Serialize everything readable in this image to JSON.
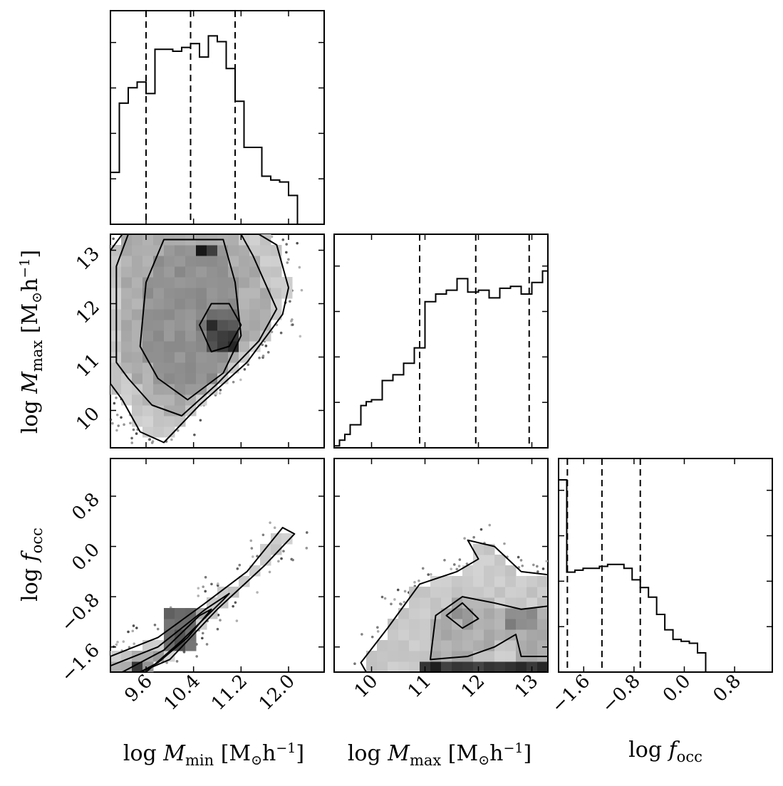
{
  "chart_data": {
    "type": "corner",
    "parameters": [
      {
        "key": "mmin",
        "label": "log M_min [M⊙h⁻¹]",
        "range": [
          9.0,
          12.6
        ]
      },
      {
        "key": "mmax",
        "label": "log M_max [M⊙h⁻¹]",
        "range": [
          9.3,
          13.3
        ]
      },
      {
        "key": "focc",
        "label": "log f_occ",
        "range": [
          -2.0,
          1.4
        ]
      }
    ],
    "axis_labels": {
      "mmin": {
        "prefix": "log ",
        "var": "M",
        "sub": "min",
        "unit_open": " [M",
        "sun": "⊙",
        "h": "h",
        "exp": "−1",
        "unit_close": "]"
      },
      "mmax": {
        "prefix": "log ",
        "var": "M",
        "sub": "max",
        "unit_open": " [M",
        "sun": "⊙",
        "h": "h",
        "exp": "−1",
        "unit_close": "]"
      },
      "focc": {
        "prefix": "log ",
        "var": "f",
        "sub": "occ"
      }
    },
    "ticks": {
      "mmin": {
        "values": [
          9.6,
          10.4,
          11.2,
          12.0
        ],
        "labels": [
          "9.6",
          "10.4",
          "11.2",
          "12.0"
        ]
      },
      "mmax": {
        "values": [
          10,
          11,
          12,
          13
        ],
        "labels": [
          "10",
          "11",
          "12",
          "13"
        ]
      },
      "focc": {
        "values": [
          -1.6,
          -0.8,
          0.0,
          0.8
        ],
        "labels": [
          "−1.6",
          "−0.8",
          "0.0",
          "0.8"
        ]
      }
    },
    "histograms": [
      {
        "param": "mmin",
        "bin_edges": [
          9.0,
          9.15,
          9.3,
          9.45,
          9.6,
          9.75,
          9.9,
          10.05,
          10.2,
          10.35,
          10.5,
          10.65,
          10.8,
          10.95,
          11.1,
          11.25,
          11.4,
          11.55,
          11.7,
          11.85,
          12.0,
          12.15,
          12.3,
          12.45,
          12.6
        ],
        "counts": [
          0.27,
          0.63,
          0.71,
          0.74,
          0.68,
          0.91,
          0.91,
          0.9,
          0.92,
          0.94,
          0.87,
          0.98,
          0.95,
          0.81,
          0.64,
          0.4,
          0.4,
          0.25,
          0.23,
          0.22,
          0.15,
          0.0,
          0.0,
          0.0
        ],
        "quantiles": [
          9.6,
          10.35,
          11.1
        ]
      },
      {
        "param": "mmax",
        "bin_edges": [
          9.3,
          9.4,
          9.5,
          9.6,
          9.7,
          9.8,
          9.9,
          10.0,
          10.2,
          10.4,
          10.6,
          10.8,
          11.0,
          11.2,
          11.4,
          11.6,
          11.8,
          12.0,
          12.2,
          12.4,
          12.6,
          12.8,
          13.0,
          13.2,
          13.3
        ],
        "counts": [
          0.01,
          0.04,
          0.07,
          0.12,
          0.12,
          0.22,
          0.24,
          0.25,
          0.35,
          0.38,
          0.44,
          0.52,
          0.76,
          0.8,
          0.82,
          0.88,
          0.81,
          0.82,
          0.78,
          0.83,
          0.84,
          0.8,
          0.86,
          0.92
        ],
        "quantiles": [
          10.9,
          11.95,
          12.95
        ]
      },
      {
        "param": "focc",
        "bin_edges": [
          -2.0,
          -1.87,
          -1.74,
          -1.61,
          -1.48,
          -1.35,
          -1.22,
          -1.09,
          -0.96,
          -0.83,
          -0.7,
          -0.57,
          -0.44,
          -0.31,
          -0.18,
          -0.05,
          0.08,
          0.21,
          0.34,
          0.47,
          0.6,
          0.73,
          0.86,
          0.99,
          1.12,
          1.4
        ],
        "counts": [
          1.0,
          0.52,
          0.53,
          0.54,
          0.54,
          0.55,
          0.56,
          0.56,
          0.54,
          0.48,
          0.44,
          0.39,
          0.3,
          0.22,
          0.17,
          0.16,
          0.15,
          0.1,
          0.0,
          0.0,
          0.0,
          0.0,
          0.0,
          0.0,
          0.0
        ],
        "quantiles": [
          -1.86,
          -1.31,
          -0.7
        ]
      }
    ],
    "contour_panels": [
      {
        "x": "mmin",
        "y": "mmax",
        "peak_regions": [
          {
            "x": [
              10.5,
              10.8
            ],
            "y": [
              13.0,
              13.2
            ],
            "density": 0.95
          },
          {
            "x": [
              10.6,
              11.1
            ],
            "y": [
              11.2,
              11.7
            ],
            "density": 0.85
          }
        ],
        "contours": [
          [
            [
              9.0,
              10.5
            ],
            [
              9.2,
              10.2
            ],
            [
              9.5,
              9.6
            ],
            [
              9.9,
              9.4
            ],
            [
              10.5,
              10.1
            ],
            [
              11.3,
              10.9
            ],
            [
              11.9,
              11.8
            ],
            [
              12.0,
              12.3
            ],
            [
              11.8,
              13.1
            ],
            [
              11.5,
              13.3
            ],
            [
              9.2,
              13.3
            ],
            [
              9.0,
              13.0
            ]
          ],
          [
            [
              9.1,
              10.9
            ],
            [
              9.3,
              10.6
            ],
            [
              9.7,
              10.1
            ],
            [
              10.2,
              9.9
            ],
            [
              10.8,
              10.5
            ],
            [
              11.5,
              11.3
            ],
            [
              11.8,
              11.9
            ],
            [
              11.4,
              12.9
            ],
            [
              11.2,
              13.3
            ],
            [
              9.3,
              13.3
            ],
            [
              9.1,
              12.7
            ]
          ],
          [
            [
              9.5,
              11.2
            ],
            [
              9.8,
              10.6
            ],
            [
              10.3,
              10.2
            ],
            [
              10.9,
              10.7
            ],
            [
              11.2,
              11.4
            ],
            [
              11.1,
              12.4
            ],
            [
              10.9,
              13.2
            ],
            [
              9.9,
              13.2
            ],
            [
              9.6,
              12.4
            ]
          ],
          [
            [
              10.5,
              11.6
            ],
            [
              10.7,
              11.1
            ],
            [
              11.0,
              11.2
            ],
            [
              11.2,
              11.6
            ],
            [
              11.0,
              12.0
            ],
            [
              10.7,
              12.0
            ]
          ]
        ]
      },
      {
        "x": "mmin",
        "y": "focc",
        "peak_regions": [
          {
            "x": [
              9.3,
              9.6
            ],
            "y": [
              -2.0,
              -1.85
            ],
            "density": 0.95
          },
          {
            "x": [
              9.9,
              10.4
            ],
            "y": [
              -1.6,
              -1.0
            ],
            "density": 0.7
          }
        ],
        "contours": [
          [
            [
              9.0,
              -1.75
            ],
            [
              9.8,
              -1.45
            ],
            [
              10.6,
              -0.9
            ],
            [
              11.3,
              -0.4
            ],
            [
              11.9,
              0.3
            ],
            [
              12.1,
              0.2
            ],
            [
              11.6,
              -0.3
            ],
            [
              10.8,
              -1.0
            ],
            [
              10.0,
              -1.8
            ],
            [
              9.5,
              -2.0
            ],
            [
              9.0,
              -2.0
            ]
          ],
          [
            [
              9.0,
              -1.9
            ],
            [
              9.8,
              -1.6
            ],
            [
              10.6,
              -1.0
            ],
            [
              11.0,
              -0.75
            ],
            [
              10.9,
              -0.85
            ],
            [
              10.2,
              -1.5
            ],
            [
              9.6,
              -2.0
            ],
            [
              9.0,
              -2.0
            ]
          ],
          [
            [
              9.2,
              -2.0
            ],
            [
              9.9,
              -1.65
            ],
            [
              10.5,
              -1.1
            ],
            [
              10.7,
              -1.0
            ],
            [
              10.3,
              -1.45
            ],
            [
              9.8,
              -1.85
            ],
            [
              9.5,
              -2.0
            ]
          ]
        ]
      },
      {
        "x": "mmax",
        "y": "focc",
        "peak_regions": [
          {
            "x": [
              11.0,
              13.3
            ],
            "y": [
              -2.0,
              -1.85
            ],
            "density": 0.9
          },
          {
            "x": [
              12.6,
              13.2
            ],
            "y": [
              -1.4,
              -0.9
            ],
            "density": 0.55
          }
        ],
        "contours": [
          [
            [
              9.8,
              -1.85
            ],
            [
              10.3,
              -1.3
            ],
            [
              10.9,
              -0.6
            ],
            [
              11.6,
              -0.4
            ],
            [
              12.0,
              -0.2
            ],
            [
              11.8,
              0.1
            ],
            [
              12.3,
              0.0
            ],
            [
              12.8,
              -0.4
            ],
            [
              13.3,
              -0.45
            ],
            [
              13.3,
              -2.0
            ],
            [
              9.9,
              -2.0
            ]
          ],
          [
            [
              11.1,
              -1.8
            ],
            [
              11.2,
              -1.1
            ],
            [
              11.7,
              -0.8
            ],
            [
              12.3,
              -0.9
            ],
            [
              12.8,
              -1.0
            ],
            [
              13.3,
              -0.95
            ],
            [
              13.3,
              -1.75
            ],
            [
              12.8,
              -1.75
            ],
            [
              12.7,
              -1.4
            ],
            [
              12.3,
              -1.6
            ],
            [
              11.8,
              -1.75
            ]
          ],
          [
            [
              11.4,
              -1.1
            ],
            [
              11.7,
              -0.9
            ],
            [
              12.0,
              -1.15
            ],
            [
              11.7,
              -1.3
            ]
          ]
        ]
      }
    ]
  }
}
